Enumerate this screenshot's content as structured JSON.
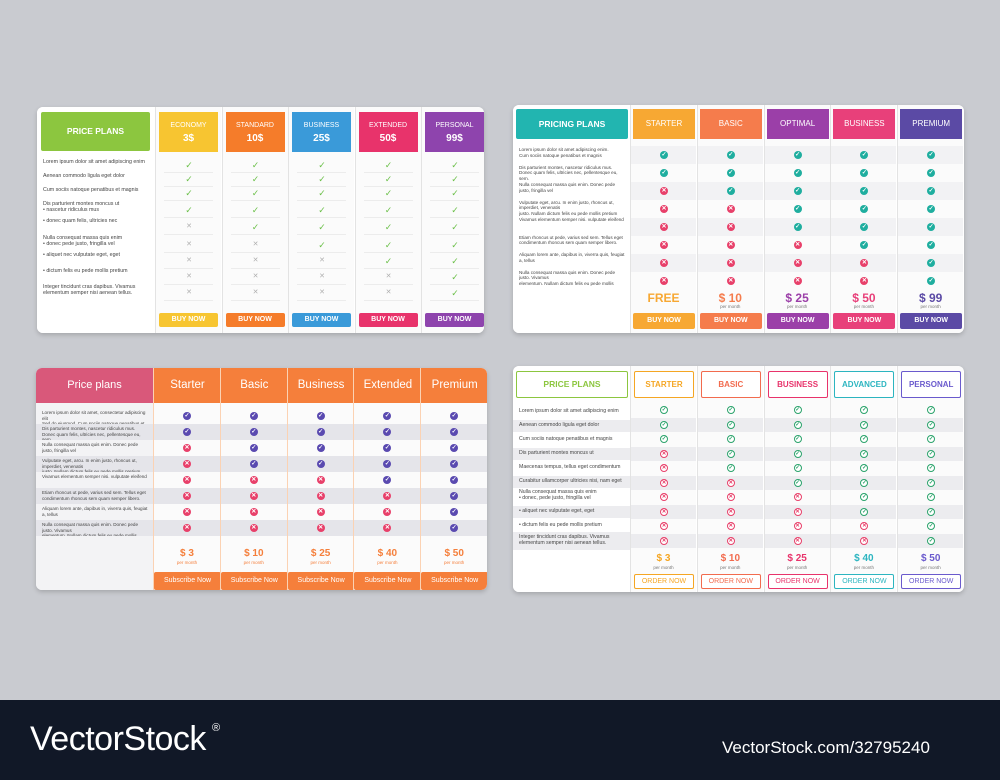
{
  "t1": {
    "title": "PRICE PLANS",
    "features": [
      "Lorem ipsum dolor sit amet adipiscing enim",
      "Aenean commodo ligula eget dolor",
      "Cum sociis natoque penatibus et magnis",
      "Dis parturient montes moncus ut\n  • nascetur ridiculus mus",
      "  • donec quam felis, ultricies nec",
      "Nulla consequat massa quis enim\n  • donec pede justo, fringilla vel",
      "  • aliquet nec vulputate eget, eget",
      "  • dictum felis eu pede mollis pretium",
      "Integer tincidunt cras dapibus. Vivamus\nelementum semper nisi aenean tellus."
    ],
    "plans": [
      {
        "name": "ECONOMY",
        "price": "3$",
        "color": "#f7c531",
        "button": "BUY NOW",
        "checks": [
          1,
          1,
          1,
          1,
          0,
          0,
          0,
          0,
          0
        ]
      },
      {
        "name": "STANDARD",
        "price": "10$",
        "color": "#f57c2a",
        "button": "BUY NOW",
        "checks": [
          1,
          1,
          1,
          1,
          1,
          0,
          0,
          0,
          0
        ]
      },
      {
        "name": "BUSINESS",
        "price": "25$",
        "color": "#3a9ad9",
        "button": "BUY NOW",
        "checks": [
          1,
          1,
          1,
          1,
          1,
          1,
          0,
          0,
          0
        ]
      },
      {
        "name": "EXTENDED",
        "price": "50$",
        "color": "#e8336b",
        "button": "BUY NOW",
        "checks": [
          1,
          1,
          1,
          1,
          1,
          1,
          1,
          0,
          0
        ]
      },
      {
        "name": "PERSONAL",
        "price": "99$",
        "color": "#8e44ad",
        "button": "BUY NOW",
        "checks": [
          1,
          1,
          1,
          1,
          1,
          1,
          1,
          1,
          1
        ]
      }
    ]
  },
  "t2": {
    "title": "PRICING PLANS",
    "features": [
      "Lorem ipsum dolor sit amet adipiscing enim.\nCum sociis natoque penatibus et magnis",
      "Dis parturient montes, nascetur ridiculus mus.\nDonec quam felis, ultricies nec, pellentesque eu, sem.",
      "Nulla consequat massa quis enim. Donec pede justo, fringilla vel",
      "Vulputate eget, arcu. In enim justo, rhoncus ut, imperdiet, venenatis\njusto. Nullam dictum felis eu pede mollis pretium integer tincidunt.",
      "Vivamus elementum semper nisi. vulputate eleifend",
      "Etiam rhoncus ut pede, varius sed sem. Tellus eget\ncondimentum rhoncus sem quam semper libero.",
      "Aliquam lorem ante, dapibus in, viverra quis, feugiat a, tellus",
      "Nulla consequat massa quis enim. Donec pede justo. Vivamus\nelementum. Nullam dictum felis eu pede mollis pretium."
    ],
    "plans": [
      {
        "name": "STARTER",
        "price": "FREE",
        "per": "",
        "color": "#f7a833",
        "button": "BUY NOW",
        "checks": [
          1,
          1,
          0,
          0,
          0,
          0,
          0,
          0
        ]
      },
      {
        "name": "BASIC",
        "price": "$ 10",
        "per": "per month",
        "color": "#f57c4c",
        "button": "BUY NOW",
        "checks": [
          1,
          1,
          1,
          0,
          0,
          0,
          0,
          0
        ]
      },
      {
        "name": "OPTIMAL",
        "price": "$ 25",
        "per": "per month",
        "color": "#9b3fa8",
        "button": "BUY NOW",
        "checks": [
          1,
          1,
          1,
          1,
          1,
          0,
          0,
          0
        ]
      },
      {
        "name": "BUSINESS",
        "price": "$ 50",
        "per": "per month",
        "color": "#e8407a",
        "button": "BUY NOW",
        "checks": [
          1,
          1,
          1,
          1,
          1,
          1,
          0,
          0
        ]
      },
      {
        "name": "PREMIUM",
        "price": "$ 99",
        "per": "per month",
        "color": "#5b4aa5",
        "button": "BUY NOW",
        "checks": [
          1,
          1,
          1,
          1,
          1,
          1,
          1,
          1
        ]
      }
    ]
  },
  "t3": {
    "title": "Price plans",
    "features": [
      "Lorem ipsum dolor sit amet, consectetur adipiscing elit\nSed do eiusmod. Cum sociis natoque penatibus et.",
      "Dis parturient montes, nascetur ridiculus mus.\nDonec quam felis, ultricies nec, pellentesque eu, sem.",
      "Nulla consequat massa quis enim. Donec pede justo, fringilla vel",
      "Vulputate eget, arcu. In enim justo, rhoncus ut, imperdiet, venenatis\njusto. Nullam dictum felis eu pede mollis pretium integer tincidunt.",
      "Vivamus elementum semper nisi. vulputate eleifend",
      "Etiam rhoncus ut pede, varius sed sem. Tellus eget\ncondimentum rhoncus sem quam semper libero.",
      "Aliquam lorem ante, dapibus in, viverra quis, feugiat a, tellus",
      "Nulla consequat massa quis enim. Donec pede justo. Vivamus\nelementum. Nullam dictum felis eu pede mollis pretium."
    ],
    "plans": [
      {
        "name": "Starter",
        "price": "$ 3",
        "per": "per month",
        "button": "Subscribe Now",
        "checks": [
          1,
          1,
          0,
          0,
          0,
          0,
          0,
          0
        ]
      },
      {
        "name": "Basic",
        "price": "$ 10",
        "per": "per month",
        "button": "Subscribe Now",
        "checks": [
          1,
          1,
          1,
          1,
          0,
          0,
          0,
          0
        ]
      },
      {
        "name": "Business",
        "price": "$ 25",
        "per": "per month",
        "button": "Subscribe Now",
        "checks": [
          1,
          1,
          1,
          1,
          0,
          0,
          0,
          0
        ]
      },
      {
        "name": "Extended",
        "price": "$ 40",
        "per": "per month",
        "button": "Subscribe Now",
        "checks": [
          1,
          1,
          1,
          1,
          1,
          0,
          0,
          0
        ]
      },
      {
        "name": "Premium",
        "price": "$ 50",
        "per": "per month",
        "button": "Subscribe Now",
        "checks": [
          1,
          1,
          1,
          1,
          1,
          1,
          1,
          1
        ]
      }
    ]
  },
  "t4": {
    "title": "PRICE PLANS",
    "features": [
      "Lorem ipsum dolor sit amet adipiscing enim",
      "Aenean commodo ligula eget dolor",
      "Cum sociis natoque penatibus et magnis",
      "Dis parturient montes moncus ut",
      "Maecenas tempus, tellus eget condimentum",
      "Curabitur ullamcorper ultricies nisi, nam eget",
      "Nulla consequat massa quis enim\n  • donec, pede justo, fringilla vel",
      "  • aliquet nec vulputate eget, eget",
      "  • dictum felis eu pede mollis pretium",
      "Integer tincidunt cras dapibus. Vivamus\nelementum semper nisi aenean tellus."
    ],
    "plans": [
      {
        "name": "STARTER",
        "price": "$ 3",
        "per": "per month",
        "color": "#f5a623",
        "button": "ORDER NOW",
        "checks": [
          1,
          1,
          1,
          0,
          0,
          0,
          0,
          0,
          0,
          0
        ]
      },
      {
        "name": "BASIC",
        "price": "$ 10",
        "per": "per month",
        "color": "#f26b4e",
        "button": "ORDER NOW",
        "checks": [
          1,
          1,
          1,
          1,
          1,
          0,
          0,
          0,
          0,
          0
        ]
      },
      {
        "name": "BUSINESS",
        "price": "$ 25",
        "per": "per month",
        "color": "#e8336b",
        "button": "ORDER NOW",
        "checks": [
          1,
          1,
          1,
          1,
          1,
          1,
          0,
          0,
          0,
          0
        ]
      },
      {
        "name": "ADVANCED",
        "price": "$ 40",
        "per": "per month",
        "color": "#2cb5c0",
        "button": "ORDER NOW",
        "checks": [
          1,
          1,
          1,
          1,
          1,
          1,
          1,
          1,
          0,
          0
        ]
      },
      {
        "name": "PERSONAL",
        "price": "$ 50",
        "per": "per month",
        "color": "#6a5acd",
        "button": "ORDER NOW",
        "checks": [
          1,
          1,
          1,
          1,
          1,
          1,
          1,
          1,
          1,
          1
        ]
      }
    ]
  },
  "colors": {
    "t1_title": "#8cc63f",
    "t2_title": "#22b5b0",
    "t3_title": "#d9587a",
    "t3_plan": "#f57f3b",
    "t3_check": "#5a4ab0",
    "t4_title": "#8cc63f",
    "cross": "#e8406a",
    "check_green": "#2aa36b"
  },
  "footer": {
    "brand": "VectorStock",
    "reg": "®",
    "url": "VectorStock.com/32795240"
  }
}
